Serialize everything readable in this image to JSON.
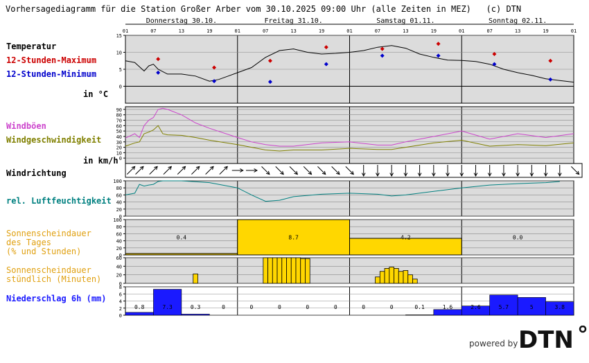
{
  "title": "Vorhersagediagramm für die Station Großer Arber vom 30.10.2025 09:00 Uhr (alle Zeiten in MEZ)   (c) DTN",
  "days": [
    "Donnerstag 30.10.",
    "Freitag 31.10.",
    "Samstag 01.11.",
    "Sonntag 02.11."
  ],
  "hour_ticks": [
    "01",
    "07",
    "13",
    "19",
    "01",
    "07",
    "13",
    "19",
    "01",
    "07",
    "13",
    "19",
    "01",
    "07",
    "13",
    "19",
    "01"
  ],
  "labels": {
    "temp": "Temperatur",
    "temp_max": "12-Stunden-Maximum",
    "temp_min": "12-Stunden-Minimum",
    "temp_unit": "in °C",
    "gust": "Windböen",
    "wind": "Windgeschwindigkeit",
    "wind_unit": "in km/h",
    "dir": "Windrichtung",
    "hum": "rel. Luftfeuchtigkeit",
    "sun_day": "Sonnenscheindauer\ndes Tages\n(% und Stunden)",
    "sun_hour": "Sonnenscheindauer\nstündlich (Minuten)",
    "precip": "Niederschlag 6h (mm)"
  },
  "colors": {
    "temp": "#000000",
    "max": "#cc0000",
    "min": "#0000cc",
    "gust": "#cc44cc",
    "wind": "#808000",
    "hum": "#008080",
    "sun": "#ffd700",
    "precip": "#1a1aff",
    "panel": "#dcdcdc"
  },
  "powered_by": "powered by",
  "logo_text": "DTN",
  "chart_data": [
    {
      "type": "line",
      "name": "temperature",
      "x_unit": "hours from 30.10. 01:00",
      "ylim": [
        0,
        15
      ],
      "yticks": [
        0,
        5,
        10,
        15
      ],
      "x": [
        0,
        2,
        4,
        5,
        6,
        7,
        9,
        12,
        15,
        18,
        20,
        22,
        24,
        27,
        30,
        33,
        36,
        39,
        42,
        45,
        48,
        51,
        54,
        57,
        60,
        63,
        66,
        69,
        72,
        75,
        78,
        81,
        84,
        87,
        90,
        93,
        96
      ],
      "values": [
        7.5,
        7,
        4.5,
        6,
        6.5,
        5,
        3.6,
        3.6,
        3,
        1.5,
        2,
        3,
        4,
        5.5,
        8.5,
        10.5,
        11,
        10,
        9.5,
        9.7,
        10,
        10.5,
        11.5,
        12,
        11.2,
        9.5,
        8.5,
        7.7,
        7.6,
        7.3,
        6.5,
        5,
        4,
        3.2,
        2.2,
        1.7,
        1.2
      ],
      "max_x": [
        7,
        19,
        31,
        43,
        55,
        67,
        79,
        91
      ],
      "max": [
        8,
        5.5,
        7.5,
        11.5,
        11,
        12.5,
        9.5,
        7.5
      ],
      "min_x": [
        7,
        19,
        31,
        43,
        55,
        67,
        79,
        91
      ],
      "min": [
        4,
        1.5,
        1.3,
        6.5,
        9,
        9,
        6.5,
        2
      ]
    },
    {
      "type": "line",
      "name": "wind",
      "ylim": [
        0,
        90
      ],
      "yticks": [
        0,
        10,
        20,
        30,
        40,
        50,
        60,
        70,
        80,
        90
      ],
      "x": [
        0,
        2,
        3,
        4,
        5,
        6,
        7,
        8,
        9,
        12,
        15,
        18,
        24,
        27,
        30,
        33,
        36,
        42,
        48,
        54,
        57,
        60,
        66,
        72,
        78,
        84,
        90,
        96
      ],
      "gust": [
        37,
        45,
        38,
        60,
        70,
        75,
        90,
        92,
        90,
        80,
        65,
        55,
        38,
        30,
        25,
        22,
        22,
        28,
        30,
        24,
        24,
        30,
        40,
        50,
        35,
        45,
        38,
        45
      ],
      "speed": [
        22,
        28,
        30,
        45,
        48,
        52,
        60,
        45,
        43,
        42,
        38,
        33,
        25,
        20,
        15,
        13,
        15,
        15,
        18,
        16,
        16,
        20,
        28,
        33,
        22,
        25,
        23,
        28
      ]
    },
    {
      "type": "scatter",
      "name": "wind-direction",
      "x": [
        0,
        3,
        6,
        9,
        12,
        15,
        18,
        21,
        24,
        27,
        30,
        33,
        36,
        39,
        42,
        45,
        48,
        51,
        54,
        57,
        60,
        63,
        66,
        69,
        72,
        75,
        78,
        81,
        84,
        87,
        90,
        93,
        96
      ],
      "dir": [
        225,
        225,
        225,
        225,
        225,
        225,
        225,
        225,
        270,
        270,
        315,
        315,
        315,
        315,
        315,
        315,
        315,
        0,
        0,
        0,
        0,
        0,
        0,
        0,
        0,
        0,
        0,
        0,
        0,
        0,
        0,
        0,
        315
      ]
    },
    {
      "type": "line",
      "name": "humidity",
      "ylim": [
        0,
        100
      ],
      "yticks": [
        0,
        20,
        40,
        60,
        80,
        100
      ],
      "x": [
        0,
        2,
        3,
        4,
        5,
        6,
        7,
        8,
        12,
        18,
        24,
        27,
        30,
        33,
        36,
        42,
        48,
        54,
        57,
        60,
        66,
        72,
        78,
        84,
        90,
        93
      ],
      "values": [
        60,
        65,
        90,
        85,
        88,
        90,
        98,
        100,
        100,
        95,
        80,
        60,
        42,
        45,
        55,
        62,
        65,
        62,
        57,
        60,
        70,
        80,
        88,
        92,
        95,
        98
      ]
    },
    {
      "type": "bar",
      "name": "sun-daily",
      "ylim": [
        0,
        100
      ],
      "yticks": [
        0,
        20,
        40,
        60,
        80,
        100
      ],
      "days": [
        "30.10.",
        "31.10.",
        "01.11.",
        "02.11."
      ],
      "percent": [
        4,
        100,
        47,
        0
      ],
      "hours": [
        "0.4",
        "8.7",
        "4.2",
        "0.0"
      ]
    },
    {
      "type": "bar",
      "name": "sun-hourly",
      "ylim": [
        0,
        60
      ],
      "yticks": [
        0,
        20,
        40,
        60
      ],
      "x": [
        15,
        30,
        31,
        32,
        33,
        34,
        35,
        36,
        37,
        38,
        39,
        54,
        55,
        56,
        57,
        58,
        59,
        60,
        61,
        62
      ],
      "minutes": [
        22,
        60,
        60,
        60,
        60,
        60,
        60,
        60,
        60,
        58,
        58,
        15,
        28,
        35,
        38,
        35,
        28,
        30,
        20,
        10
      ]
    },
    {
      "type": "bar",
      "name": "precipitation",
      "ylim": [
        0,
        8
      ],
      "yticks": [
        0,
        2,
        4,
        6,
        8
      ],
      "x": [
        0,
        6,
        12,
        18,
        24,
        30,
        36,
        42,
        48,
        54,
        60,
        66,
        72,
        78,
        84,
        90
      ],
      "values": [
        0.8,
        7.3,
        0.3,
        0,
        0,
        0,
        0,
        0,
        0,
        0,
        0.1,
        1.6,
        2.6,
        5.7,
        5,
        3.8
      ],
      "labels": [
        "0.8",
        "7.3",
        "0.3",
        "0",
        "0",
        "0",
        "0",
        "0",
        "0",
        "0",
        "0.1",
        "1.6",
        "2.6",
        "5.7",
        "5",
        "3.8"
      ]
    }
  ]
}
